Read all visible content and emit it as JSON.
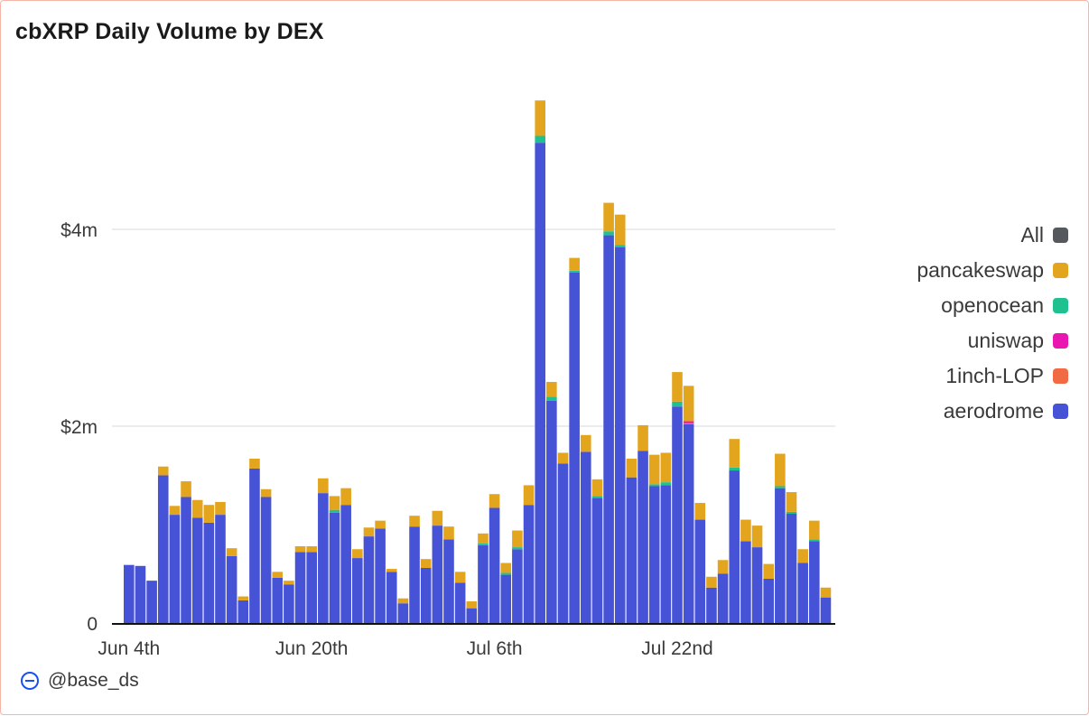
{
  "card": {
    "title": "cbXRP Daily Volume by DEX"
  },
  "legend": [
    {
      "label": "All",
      "color": "#55585d"
    },
    {
      "label": "pancakeswap",
      "color": "#e3a51d"
    },
    {
      "label": "openocean",
      "color": "#20c191"
    },
    {
      "label": "uniswap",
      "color": "#ea16b2"
    },
    {
      "label": "1inch-LOP",
      "color": "#f26a43"
    },
    {
      "label": "aerodrome",
      "color": "#4753d6"
    }
  ],
  "footer": {
    "handle": "@base_ds",
    "icon": "base-logo-icon"
  },
  "chart_data": {
    "type": "bar",
    "stacked": true,
    "title": "cbXRP Daily Volume by DEX",
    "x_ticks": [
      "Jun 4th",
      "Jun 20th",
      "Jul 6th",
      "Jul 22nd"
    ],
    "x_tick_indices": [
      0,
      16,
      32,
      48
    ],
    "y_ticks": [
      "0",
      "$2m",
      "$4m"
    ],
    "y_tick_values": [
      0,
      2,
      4
    ],
    "ylim": [
      0,
      5.45
    ],
    "grid": true,
    "legend_position": "right",
    "series": [
      {
        "name": "aerodrome",
        "color": "#4753d6",
        "values": [
          0.59,
          0.58,
          0.43,
          1.5,
          1.1,
          1.28,
          1.07,
          1.02,
          1.1,
          0.68,
          0.23,
          1.57,
          1.28,
          0.46,
          0.39,
          0.72,
          0.72,
          1.32,
          1.12,
          1.2,
          0.66,
          0.88,
          0.96,
          0.52,
          0.2,
          0.98,
          0.56,
          0.99,
          0.85,
          0.41,
          0.15,
          0.79,
          1.17,
          0.49,
          0.75,
          1.2,
          4.88,
          2.26,
          1.62,
          3.56,
          1.74,
          1.27,
          3.94,
          3.82,
          1.48,
          1.75,
          1.39,
          1.4,
          2.2,
          2.02,
          1.05,
          0.36,
          0.5,
          1.55,
          0.83,
          0.77,
          0.45,
          1.37,
          1.11,
          0.61,
          0.83,
          0.26
        ]
      },
      {
        "name": "1inch-LOP",
        "color": "#f26a43",
        "values": [
          0,
          0,
          0,
          0,
          0,
          0,
          0,
          0,
          0,
          0,
          0,
          0,
          0,
          0,
          0,
          0,
          0,
          0,
          0,
          0,
          0,
          0,
          0,
          0,
          0,
          0,
          0,
          0,
          0,
          0,
          0,
          0,
          0,
          0,
          0,
          0,
          0,
          0,
          0,
          0,
          0,
          0,
          0,
          0,
          0,
          0,
          0,
          0,
          0,
          0.01,
          0,
          0,
          0,
          0,
          0,
          0,
          0,
          0,
          0,
          0,
          0,
          0
        ]
      },
      {
        "name": "uniswap",
        "color": "#ea16b2",
        "values": [
          0,
          0,
          0,
          0,
          0,
          0,
          0,
          0,
          0,
          0,
          0,
          0,
          0,
          0,
          0,
          0,
          0,
          0,
          0,
          0,
          0,
          0,
          0,
          0,
          0,
          0,
          0,
          0,
          0,
          0,
          0,
          0,
          0,
          0,
          0,
          0,
          0,
          0,
          0,
          0,
          0,
          0,
          0,
          0,
          0,
          0,
          0,
          0,
          0,
          0.02,
          0,
          0,
          0,
          0,
          0,
          0,
          0,
          0,
          0,
          0,
          0,
          0
        ]
      },
      {
        "name": "openocean",
        "color": "#20c191",
        "values": [
          0,
          0,
          0,
          0,
          0,
          0,
          0,
          0,
          0,
          0,
          0,
          0,
          0,
          0,
          0,
          0,
          0,
          0,
          0.03,
          0,
          0,
          0,
          0,
          0,
          0,
          0,
          0,
          0,
          0,
          0,
          0,
          0.02,
          0,
          0.02,
          0.02,
          0,
          0.07,
          0.04,
          0,
          0.02,
          0,
          0.02,
          0.04,
          0.02,
          0,
          0,
          0.02,
          0.03,
          0.05,
          0,
          0,
          0,
          0,
          0.03,
          0,
          0,
          0,
          0.02,
          0.02,
          0,
          0.02,
          0
        ]
      },
      {
        "name": "pancakeswap",
        "color": "#e3a51d",
        "values": [
          0,
          0,
          0,
          0.09,
          0.09,
          0.16,
          0.18,
          0.18,
          0.13,
          0.08,
          0.04,
          0.1,
          0.08,
          0.06,
          0.04,
          0.06,
          0.06,
          0.15,
          0.14,
          0.17,
          0.09,
          0.09,
          0.08,
          0.03,
          0.05,
          0.11,
          0.09,
          0.15,
          0.13,
          0.11,
          0.07,
          0.1,
          0.14,
          0.1,
          0.17,
          0.2,
          0.36,
          0.15,
          0.11,
          0.13,
          0.17,
          0.17,
          0.29,
          0.31,
          0.19,
          0.26,
          0.3,
          0.3,
          0.3,
          0.36,
          0.17,
          0.11,
          0.14,
          0.29,
          0.22,
          0.22,
          0.15,
          0.33,
          0.2,
          0.14,
          0.19,
          0.1
        ]
      }
    ]
  }
}
